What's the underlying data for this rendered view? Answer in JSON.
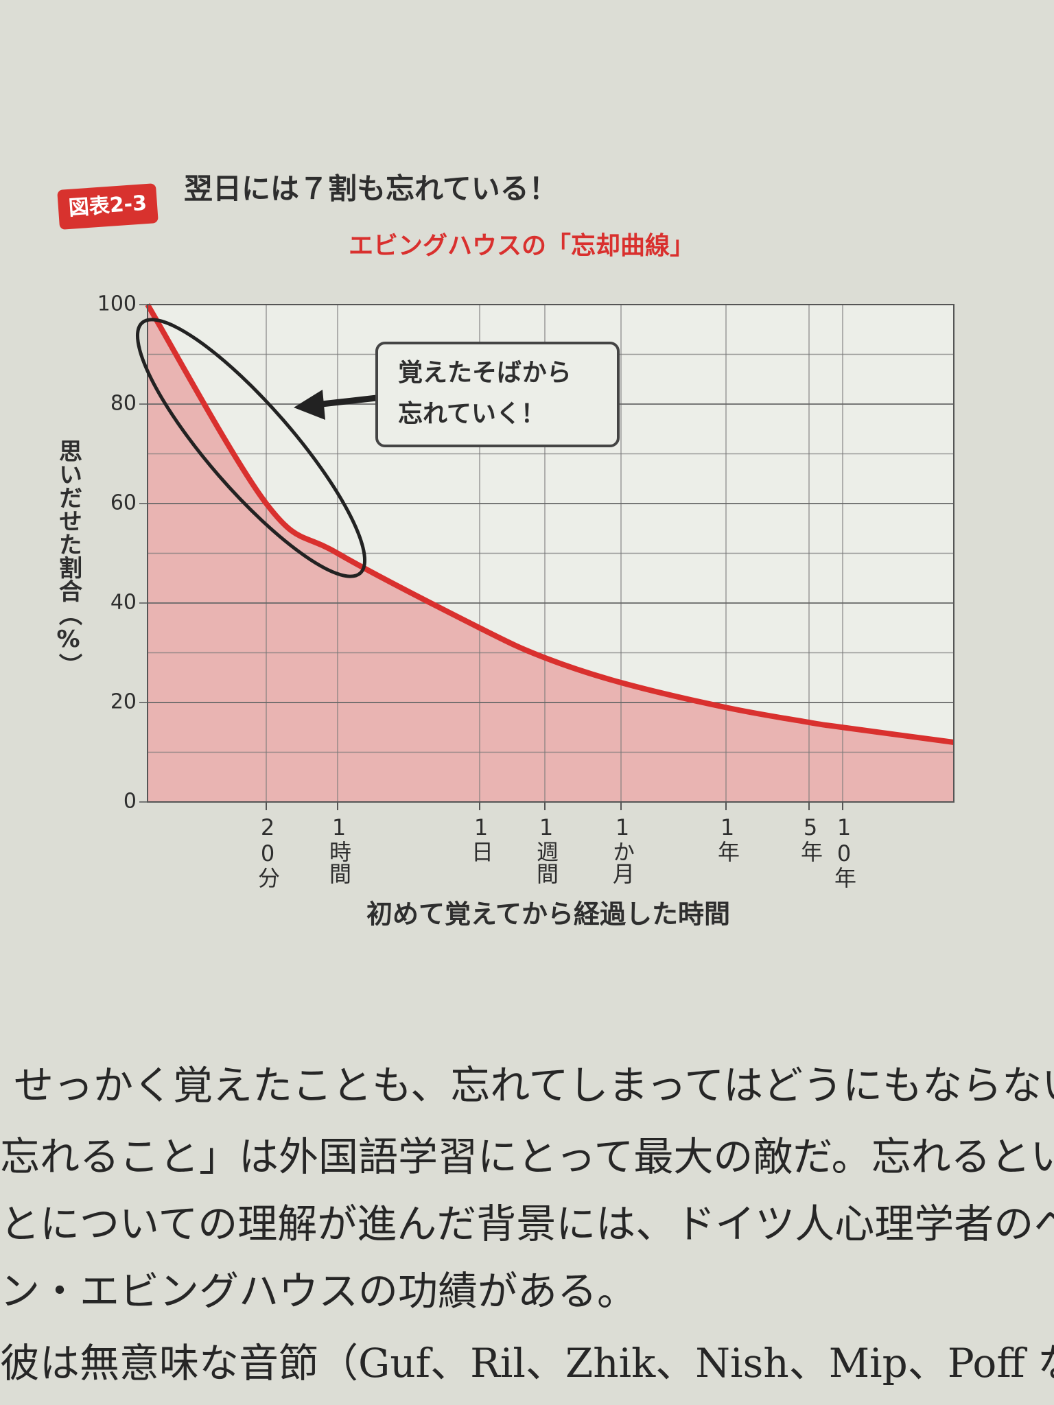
{
  "figure_label": "図表2-3",
  "heading": "翌日には７割も忘れている！",
  "chart_data": {
    "type": "area-line",
    "title": "エビングハウスの「忘却曲線」",
    "ylabel": "思いだせた割合（%）",
    "xlabel": "初めて覚えてから経過した時間",
    "categories": [
      null,
      "20分",
      "1時間",
      "1日",
      "1週間",
      "1か月",
      "1年",
      "5年",
      "10年",
      null
    ],
    "values": [
      100,
      60,
      50,
      35,
      29,
      24,
      19,
      16,
      15,
      12
    ],
    "color": "#d9302e",
    "fill": "#e9b4b2",
    "ylim": [
      0,
      100
    ],
    "yticks": [
      0,
      20,
      40,
      60,
      80,
      100
    ],
    "yminor": [
      10,
      30,
      50,
      70,
      90
    ],
    "grid": true,
    "annotation": [
      "覚えたそばから",
      "忘れていく！"
    ]
  },
  "body": [
    "せっかく覚えたことも、忘れてしまってはどうにもならない。",
    "忘れること」は外国語学習にとって最大の敵だ。忘れるという",
    "とについての理解が進んだ背景には、ドイツ人心理学者のヘル",
    "ン・エビングハウスの功績がある。",
    "彼は無意味な音節（Guf、Ril、Zhik、Nish、Mip、Poff など）"
  ]
}
